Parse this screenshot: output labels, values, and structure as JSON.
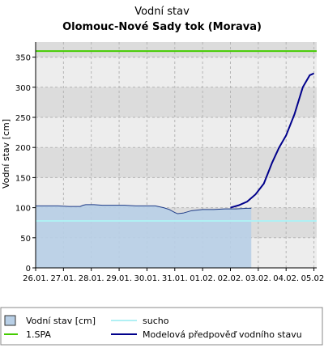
{
  "chart_data": {
    "type": "line",
    "title": "Vodní stav",
    "subtitle": "Olomouc-Nové Sady tok (Morava)",
    "ylabel": "Vodní stav [cm]",
    "ylim": [
      0,
      375
    ],
    "yticks": [
      0,
      50,
      100,
      150,
      200,
      250,
      300,
      350
    ],
    "x_dates": [
      "26.01.",
      "27.01.",
      "28.01.",
      "29.01.",
      "30.01.",
      "31.01.",
      "01.02.",
      "02.02.",
      "03.02.",
      "04.02.",
      "05.02."
    ],
    "x_range_days": [
      0,
      10.1
    ],
    "grid": true,
    "legend_placement": "bottom",
    "observed": {
      "name": "Vodní stav [cm]",
      "color": "#b8cfe6",
      "line_color": "#1f3c88",
      "x_days": [
        0.0,
        0.4,
        0.8,
        1.2,
        1.6,
        1.7,
        1.8,
        2.1,
        2.4,
        2.8,
        3.2,
        3.6,
        4.0,
        4.3,
        4.6,
        4.8,
        5.0,
        5.1,
        5.3,
        5.6,
        6.0,
        6.4,
        6.8,
        7.2,
        7.6,
        7.75
      ],
      "values": [
        103,
        103,
        103,
        102,
        102,
        104,
        105,
        105,
        104,
        104,
        104,
        103,
        103,
        103,
        100,
        97,
        92,
        90,
        91,
        95,
        97,
        97,
        98,
        98,
        99,
        99
      ]
    },
    "forecast": {
      "name": "Modelová předpověď vodního stavu",
      "color": "#00008b",
      "x_days": [
        7.0,
        7.3,
        7.6,
        7.9,
        8.2,
        8.5,
        8.75,
        9.0,
        9.3,
        9.6,
        9.85,
        10.0
      ],
      "values": [
        100,
        104,
        110,
        122,
        140,
        175,
        200,
        220,
        255,
        300,
        320,
        323
      ]
    },
    "thresholds": [
      {
        "name": "1.SPA",
        "value": 360,
        "color": "#44cc00"
      },
      {
        "name": "sucho",
        "value": 78,
        "color": "#b0f0f4"
      }
    ],
    "bands": [
      {
        "from": 50,
        "to": 100
      },
      {
        "from": 150,
        "to": 200
      },
      {
        "from": 250,
        "to": 300
      },
      {
        "from": 350,
        "to": 375
      }
    ]
  },
  "legend": {
    "items": [
      {
        "label": "Vodní stav [cm]",
        "symbol": "box"
      },
      {
        "label": "sucho",
        "symbol": "line"
      },
      {
        "label": "1.SPA",
        "symbol": "line"
      },
      {
        "label": "Modelová předpověď vodního stavu",
        "symbol": "line"
      }
    ]
  }
}
